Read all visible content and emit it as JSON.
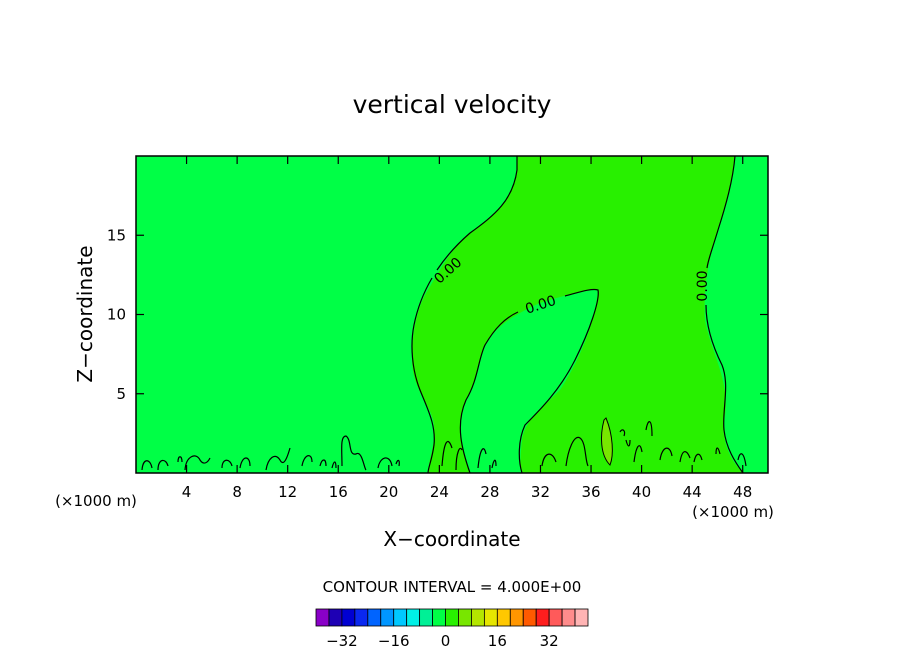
{
  "chart_data": {
    "type": "heatmap",
    "title": "vertical velocity",
    "xlabel": "X−coordinate",
    "ylabel": "Z−coordinate",
    "x_unit_left": "(×1000 m)",
    "x_unit_right": "(×1000 m)",
    "xlim": [
      0,
      50
    ],
    "ylim": [
      0,
      20
    ],
    "x_ticks": [
      4,
      8,
      12,
      16,
      20,
      24,
      28,
      32,
      36,
      40,
      44,
      48
    ],
    "y_ticks": [
      5,
      10,
      15
    ],
    "contour_labels": [
      "0.00",
      "0.00",
      "0.00"
    ],
    "contour_interval_label": "CONTOUR INTERVAL = 4.000E+00",
    "colorbar": {
      "colors": [
        "#8a00c8",
        "#1e00b4",
        "#0000d2",
        "#0a28f0",
        "#0064ff",
        "#0096ff",
        "#00c8ff",
        "#00f0e6",
        "#00f096",
        "#00ff46",
        "#28f000",
        "#78e600",
        "#b4e600",
        "#e6e600",
        "#ffc800",
        "#ff9600",
        "#ff5a00",
        "#ff1e1e",
        "#ff5a5a",
        "#ff8c8c",
        "#ffb4b4"
      ],
      "tick_labels": [
        "−32",
        "−16",
        "0",
        "16",
        "32"
      ],
      "tick_values": [
        -32,
        -16,
        0,
        16,
        32
      ]
    },
    "field_colors": {
      "background": "#00ff46",
      "positive_region": "#28f000",
      "strong_positive": "#78e600"
    }
  }
}
